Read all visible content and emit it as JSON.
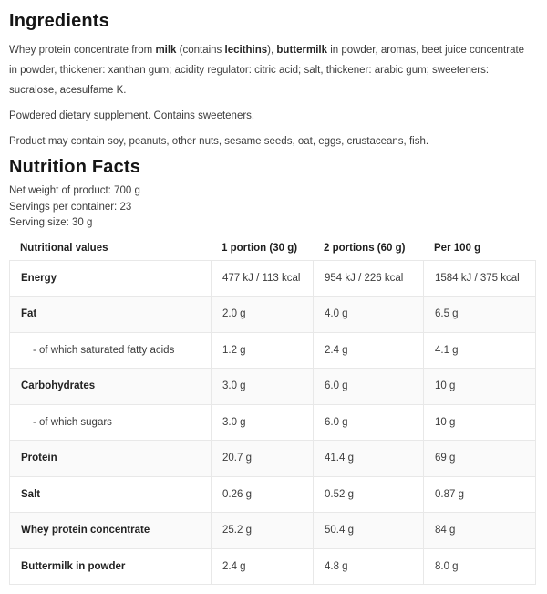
{
  "colors": {
    "background": "#ffffff",
    "heading_text": "#151515",
    "body_text": "#3c3c3c",
    "table_border": "#e8e8e8",
    "alt_row_background": "#fafafa"
  },
  "ingredients": {
    "heading": "Ingredients",
    "segments": [
      {
        "text": "Whey protein concentrate from ",
        "bold": false
      },
      {
        "text": "milk",
        "bold": true
      },
      {
        "text": " (contains ",
        "bold": false
      },
      {
        "text": "lecithins",
        "bold": true
      },
      {
        "text": "), ",
        "bold": false
      },
      {
        "text": "buttermilk",
        "bold": true
      },
      {
        "text": " in powder, aromas, beet juice concentrate in powder, thickener: xanthan gum; acidity regulator: citric acid; salt, thickener: arabic gum; sweeteners: sucralose, acesulfame K.",
        "bold": false
      }
    ],
    "supplement_note": "Powdered dietary supplement. Contains sweeteners.",
    "allergen_note": "Product may contain soy, peanuts, other nuts, sesame seeds, oat, eggs, crustaceans, fish."
  },
  "nutrition": {
    "heading": "Nutrition Facts",
    "net_weight": "Net weight of product: 700 g",
    "servings_per_container": "Servings per container: 23",
    "serving_size": "Serving size: 30 g",
    "table": {
      "headers": [
        "Nutritional values",
        "1 portion (30 g)",
        "2 portions (60 g)",
        "Per 100 g"
      ],
      "rows": [
        {
          "label": "Energy",
          "indent": false,
          "values": [
            "477 kJ / 113 kcal",
            "954 kJ / 226 kcal",
            "1584 kJ / 375 kcal"
          ]
        },
        {
          "label": "Fat",
          "indent": false,
          "values": [
            "2.0 g",
            "4.0 g",
            "6.5 g"
          ]
        },
        {
          "label": "- of which saturated fatty acids",
          "indent": true,
          "values": [
            "1.2 g",
            "2.4 g",
            "4.1 g"
          ]
        },
        {
          "label": "Carbohydrates",
          "indent": false,
          "values": [
            "3.0 g",
            "6.0 g",
            "10 g"
          ]
        },
        {
          "label": "- of which sugars",
          "indent": true,
          "values": [
            "3.0 g",
            "6.0 g",
            "10 g"
          ]
        },
        {
          "label": "Protein",
          "indent": false,
          "values": [
            "20.7 g",
            "41.4 g",
            "69 g"
          ]
        },
        {
          "label": "Salt",
          "indent": false,
          "values": [
            "0.26 g",
            "0.52 g",
            "0.87 g"
          ]
        },
        {
          "label": "Whey protein concentrate",
          "indent": false,
          "values": [
            "25.2 g",
            "50.4 g",
            "84 g"
          ]
        },
        {
          "label": "Buttermilk in powder",
          "indent": false,
          "values": [
            "2.4 g",
            "4.8 g",
            "8.0 g"
          ]
        }
      ]
    }
  }
}
